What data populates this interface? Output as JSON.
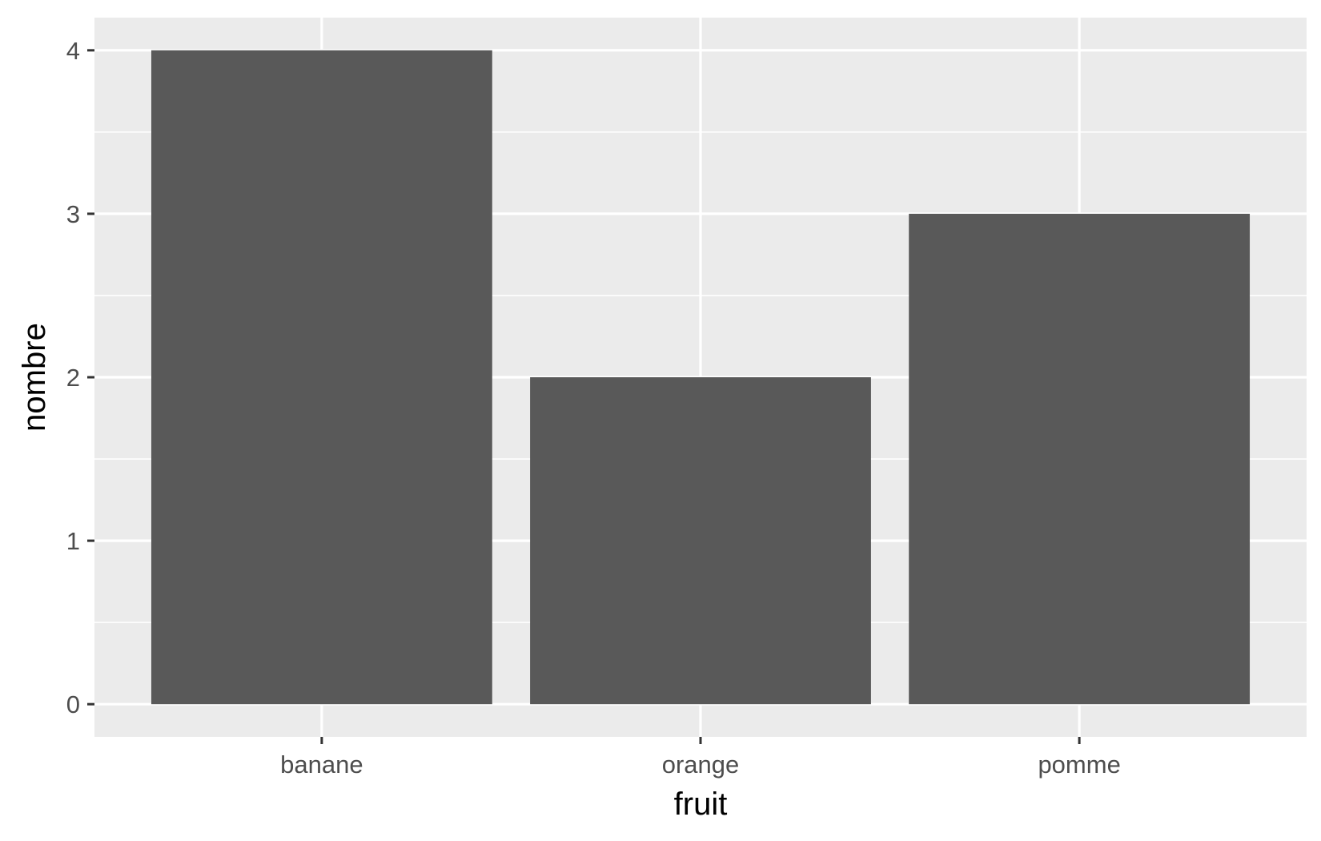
{
  "chart_data": {
    "type": "bar",
    "categories": [
      "banane",
      "orange",
      "pomme"
    ],
    "values": [
      4,
      2,
      3
    ],
    "title": "",
    "xlabel": "fruit",
    "ylabel": "nombre",
    "ylim": [
      -0.2,
      4.2
    ],
    "y_ticks": [
      0,
      1,
      2,
      3,
      4
    ],
    "y_tick_labels": [
      "0",
      "1",
      "2",
      "3",
      "4"
    ],
    "grid": true,
    "legend": "none",
    "colors": {
      "panel_background": "#ebebeb",
      "grid_line": "#ffffff",
      "bar_fill": "#595959",
      "tick_mark": "#333333"
    }
  }
}
